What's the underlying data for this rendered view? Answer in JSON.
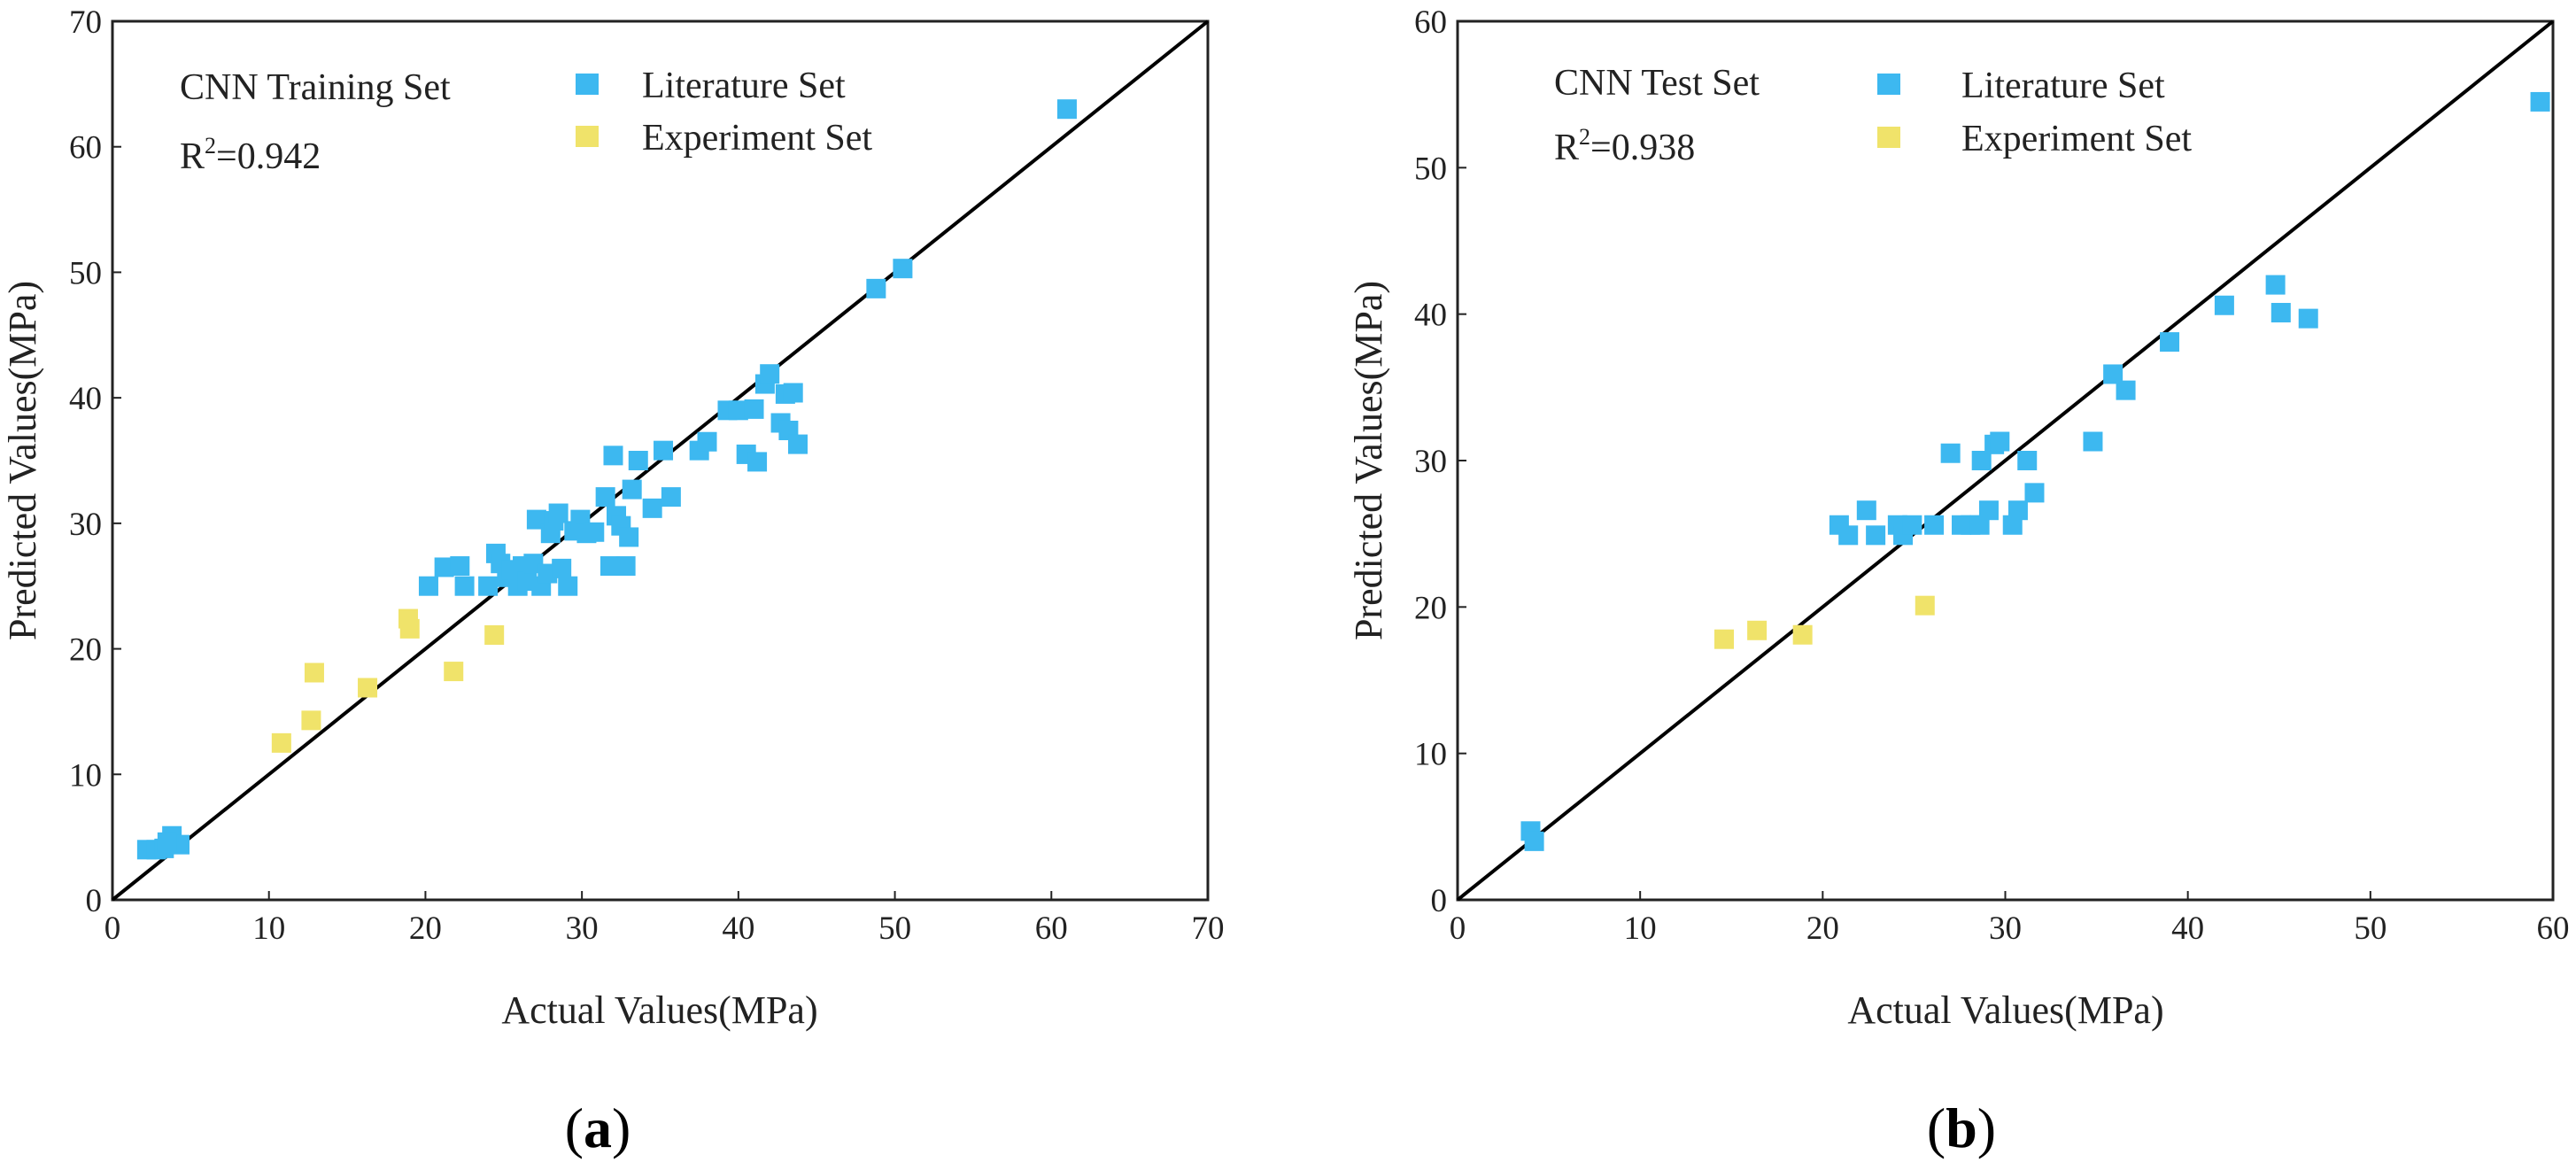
{
  "chart_data": [
    {
      "type": "scatter",
      "panel_label": "a",
      "title": "CNN Training Set",
      "r2": {
        "prefix": "R",
        "sup": "2",
        "value": "=0.942"
      },
      "xlabel": "Actual Values(MPa)",
      "ylabel": "Predicted Values(MPa)",
      "xlim": [
        0,
        70
      ],
      "ylim": [
        0,
        70
      ],
      "xticks": [
        0,
        10,
        20,
        30,
        40,
        50,
        60,
        70
      ],
      "yticks": [
        0,
        10,
        20,
        30,
        40,
        50,
        60,
        70
      ],
      "reference_line": "y = x",
      "legend": [
        {
          "name": "Literature Set",
          "color": "#3db8f0"
        },
        {
          "name": "Experiment Set",
          "color": "#f0e36a"
        }
      ],
      "series": [
        {
          "name": "Literature Set",
          "color": "#3db8f0",
          "points": [
            [
              2.2,
              4.0
            ],
            [
              2.8,
              4.0
            ],
            [
              3.3,
              4.1
            ],
            [
              3.8,
              5.1
            ],
            [
              4.3,
              4.4
            ],
            [
              3.5,
              4.6
            ],
            [
              20.2,
              25.0
            ],
            [
              21.2,
              26.5
            ],
            [
              22.2,
              26.6
            ],
            [
              22.5,
              25.0
            ],
            [
              24.0,
              25.0
            ],
            [
              24.5,
              27.6
            ],
            [
              24.8,
              26.8
            ],
            [
              25.2,
              25.7
            ],
            [
              25.5,
              26.3
            ],
            [
              25.9,
              25.0
            ],
            [
              26.2,
              26.6
            ],
            [
              26.5,
              25.4
            ],
            [
              26.9,
              26.8
            ],
            [
              27.1,
              30.3
            ],
            [
              27.4,
              25.0
            ],
            [
              27.8,
              26.0
            ],
            [
              28.0,
              29.2
            ],
            [
              28.2,
              30.2
            ],
            [
              28.5,
              30.8
            ],
            [
              28.7,
              26.4
            ],
            [
              29.1,
              25.0
            ],
            [
              29.5,
              29.4
            ],
            [
              29.9,
              30.3
            ],
            [
              30.3,
              29.2
            ],
            [
              30.8,
              29.3
            ],
            [
              31.5,
              32.1
            ],
            [
              31.8,
              26.6
            ],
            [
              32.0,
              35.4
            ],
            [
              32.2,
              30.6
            ],
            [
              32.5,
              29.8
            ],
            [
              32.8,
              26.6
            ],
            [
              33.0,
              28.9
            ],
            [
              33.2,
              32.7
            ],
            [
              33.6,
              35.0
            ],
            [
              34.5,
              31.2
            ],
            [
              35.2,
              35.8
            ],
            [
              35.7,
              32.1
            ],
            [
              37.5,
              35.8
            ],
            [
              38.0,
              36.5
            ],
            [
              39.3,
              39.0
            ],
            [
              40.0,
              39.0
            ],
            [
              40.5,
              35.5
            ],
            [
              41.0,
              39.1
            ],
            [
              41.2,
              34.9
            ],
            [
              41.7,
              41.1
            ],
            [
              42.0,
              41.9
            ],
            [
              42.7,
              38.0
            ],
            [
              43.0,
              40.3
            ],
            [
              43.5,
              40.4
            ],
            [
              43.2,
              37.4
            ],
            [
              43.8,
              36.3
            ],
            [
              48.8,
              48.7
            ],
            [
              50.5,
              50.3
            ],
            [
              61.0,
              63.0
            ]
          ]
        },
        {
          "name": "Experiment Set",
          "color": "#f0e36a",
          "points": [
            [
              10.8,
              12.5
            ],
            [
              12.7,
              14.3
            ],
            [
              12.9,
              18.1
            ],
            [
              16.3,
              16.9
            ],
            [
              18.9,
              22.4
            ],
            [
              19.0,
              21.6
            ],
            [
              21.8,
              18.2
            ],
            [
              24.4,
              21.1
            ]
          ]
        }
      ]
    },
    {
      "type": "scatter",
      "panel_label": "b",
      "title": "CNN Test Set",
      "r2": {
        "prefix": "R",
        "sup": "2",
        "value": "=0.938"
      },
      "xlabel": "Actual Values(MPa)",
      "ylabel": "Predicted Values(MPa)",
      "xlim": [
        0,
        60
      ],
      "ylim": [
        0,
        60
      ],
      "xticks": [
        0,
        10,
        20,
        30,
        40,
        50,
        60
      ],
      "yticks": [
        0,
        10,
        20,
        30,
        40,
        50,
        60
      ],
      "reference_line": "y = x",
      "legend": [
        {
          "name": "Literature Set",
          "color": "#3db8f0"
        },
        {
          "name": "Experiment Set",
          "color": "#f0e36a"
        }
      ],
      "series": [
        {
          "name": "Literature Set",
          "color": "#3db8f0",
          "points": [
            [
              4.0,
              4.7
            ],
            [
              4.2,
              4.0
            ],
            [
              20.9,
              25.6
            ],
            [
              21.4,
              24.9
            ],
            [
              22.4,
              26.6
            ],
            [
              22.9,
              24.9
            ],
            [
              24.1,
              25.6
            ],
            [
              24.4,
              24.9
            ],
            [
              24.9,
              25.6
            ],
            [
              26.1,
              25.6
            ],
            [
              27.0,
              30.5
            ],
            [
              27.6,
              25.6
            ],
            [
              28.1,
              25.6
            ],
            [
              28.6,
              25.6
            ],
            [
              28.7,
              30.0
            ],
            [
              29.1,
              26.6
            ],
            [
              29.4,
              31.1
            ],
            [
              29.7,
              31.3
            ],
            [
              30.4,
              25.6
            ],
            [
              30.7,
              26.6
            ],
            [
              31.2,
              30.0
            ],
            [
              31.6,
              27.8
            ],
            [
              34.8,
              31.3
            ],
            [
              35.9,
              35.9
            ],
            [
              36.6,
              34.8
            ],
            [
              39.0,
              38.1
            ],
            [
              42.0,
              40.6
            ],
            [
              44.8,
              42.0
            ],
            [
              45.1,
              40.1
            ],
            [
              46.6,
              39.7
            ],
            [
              59.3,
              54.5
            ]
          ]
        },
        {
          "name": "Experiment Set",
          "color": "#f0e36a",
          "points": [
            [
              14.6,
              17.8
            ],
            [
              16.4,
              18.4
            ],
            [
              18.9,
              18.1
            ],
            [
              25.6,
              20.1
            ]
          ]
        }
      ]
    }
  ]
}
